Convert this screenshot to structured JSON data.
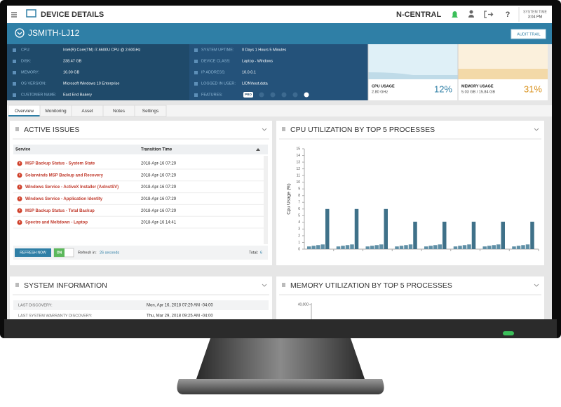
{
  "header": {
    "title": "DEVICE DETAILS",
    "brand": "N-CENTRAL",
    "help": "?",
    "system_time_label": "SYSTEM TIME",
    "system_time": "3:04 PM"
  },
  "device": {
    "name": "JSMITH-LJ12",
    "audit_trail": "AUDIT TRAIL",
    "fields_left": [
      {
        "label": "CPU:",
        "value": "Intel(R) Core(TM) i7-6600U CPU @ 2.60GHz"
      },
      {
        "label": "DISK:",
        "value": "238.47 GB"
      },
      {
        "label": "MEMORY:",
        "value": "16.00 GB"
      },
      {
        "label": "OS VERSION:",
        "value": "Microsoft Windows 10 Enterprise"
      },
      {
        "label": "CUSTOMER NAME:",
        "value": "East End Bakery"
      }
    ],
    "fields_right": [
      {
        "label": "SYSTEM UPTIME:",
        "value": "0 Days 1 Hours 5 Minutes"
      },
      {
        "label": "DEVICE CLASS:",
        "value": "Laptop - Windows"
      },
      {
        "label": "IP ADDRESS:",
        "value": "10.0.0.1"
      },
      {
        "label": "LOGGED IN USER:",
        "value": "LIDN\\host.data"
      },
      {
        "label": "FEATURES:",
        "value": "PRO"
      }
    ]
  },
  "usage": [
    {
      "label": "CPU USAGE",
      "detail": "2.80 GHz",
      "percent": "12%"
    },
    {
      "label": "MEMORY USAGE",
      "detail": "5.03 GB / 15.84 GB",
      "percent": "31%"
    }
  ],
  "tabs": [
    "Overview",
    "Monitoring",
    "Asset",
    "Notes",
    "Settings"
  ],
  "active_issues": {
    "title": "ACTIVE ISSUES",
    "columns": [
      "Service",
      "Transition Time"
    ],
    "rows": [
      [
        "MSP Backup Status - System State",
        "2018-Apr-16 07:29"
      ],
      [
        "Solarwinds MSP Backup and Recovery",
        "2018-Apr-16 07:29"
      ],
      [
        "Windows Service - ActiveX Installer (AxInstSV)",
        "2018-Apr-16 07:29"
      ],
      [
        "Windows Service - Application Identity",
        "2018-Apr-16 07:29"
      ],
      [
        "MSP Backup Status - Total Backup",
        "2018-Apr-16 07:29"
      ],
      [
        "Spectre and Meltdown - Laptop",
        "2018-Apr-16 14:41"
      ]
    ],
    "refresh_button": "REFRESH NOW",
    "toggle": "ON",
    "refresh_label": "Refresh in:",
    "refresh_value": "26 seconds",
    "total_label": "Total:",
    "total_value": "6"
  },
  "cpu_chart": {
    "type": "bar",
    "title": "CPU UTILIZATION BY TOP 5 PROCESSES",
    "y_label": "Cpu Usage (%)",
    "ylim": [
      0,
      15
    ],
    "yticks": [
      0,
      1,
      2,
      3,
      4,
      5,
      6,
      7,
      8,
      9,
      10,
      11,
      12,
      13,
      14,
      15
    ],
    "series": [
      {
        "color": "#5f8fa6",
        "values": [
          0.4,
          0.4,
          0.4,
          0.4,
          0.4,
          0.4,
          0.4,
          0.4
        ]
      },
      {
        "color": "#5f8fa6",
        "values": [
          0.5,
          0.5,
          0.5,
          0.5,
          0.5,
          0.5,
          0.5,
          0.5
        ]
      },
      {
        "color": "#5f8fa6",
        "values": [
          0.6,
          0.6,
          0.6,
          0.6,
          0.6,
          0.6,
          0.6,
          0.6
        ]
      },
      {
        "color": "#5f8fa6",
        "values": [
          0.7,
          0.7,
          0.7,
          0.7,
          0.7,
          0.7,
          0.7,
          0.7
        ]
      },
      {
        "color": "#3f7189",
        "values": [
          6,
          6,
          6,
          4.1,
          4.1,
          4.1,
          4.1,
          4.1
        ]
      }
    ]
  },
  "system_information": {
    "title": "SYSTEM INFORMATION",
    "rows": [
      [
        "LAST DISCOVERY:",
        "Mon, Apr 16, 2018 07:29 AM -04:00"
      ],
      [
        "LAST SYSTEM WARRANTY DISCOVERY:",
        "Thu, Mar 29, 2018 09:25 AM -04:00"
      ]
    ]
  },
  "memory_chart": {
    "title": "MEMORY UTILIZATION BY TOP 5 PROCESSES",
    "yticks": [
      {
        "value": 40000,
        "label": "40,000"
      }
    ]
  }
}
